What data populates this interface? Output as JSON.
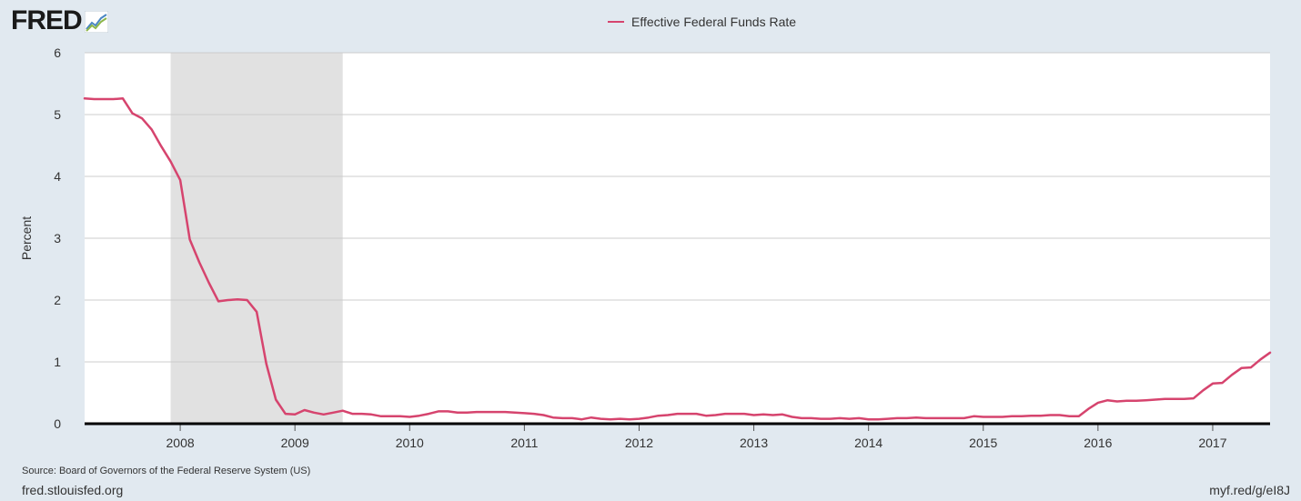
{
  "logo": {
    "text": "FRED",
    "icon": "trend-chart-icon"
  },
  "chart_data": {
    "type": "line",
    "title": "",
    "ylabel": "Percent",
    "xlabel": "",
    "ylim": [
      0,
      6
    ],
    "xlim": [
      "2007-03-01",
      "2017-07-01"
    ],
    "y_ticks": [
      0,
      1,
      2,
      3,
      4,
      5,
      6
    ],
    "x_ticks": [
      "2008",
      "2009",
      "2010",
      "2011",
      "2012",
      "2013",
      "2014",
      "2015",
      "2016",
      "2017"
    ],
    "grid": true,
    "legend_position": "top-center",
    "recession_shading": [
      [
        "2007-12-01",
        "2009-06-01"
      ]
    ],
    "colors": {
      "line": "#d6446e",
      "recession": "#e1e1e1",
      "background": "#e1e9f0",
      "grid": "#cccccc"
    },
    "series": [
      {
        "name": "Effective Federal Funds Rate",
        "points": [
          [
            "2007-03-01",
            5.26
          ],
          [
            "2007-04-01",
            5.25
          ],
          [
            "2007-05-01",
            5.25
          ],
          [
            "2007-06-01",
            5.25
          ],
          [
            "2007-07-01",
            5.26
          ],
          [
            "2007-08-01",
            5.02
          ],
          [
            "2007-09-01",
            4.94
          ],
          [
            "2007-10-01",
            4.76
          ],
          [
            "2007-11-01",
            4.49
          ],
          [
            "2007-12-01",
            4.24
          ],
          [
            "2008-01-01",
            3.94
          ],
          [
            "2008-02-01",
            2.98
          ],
          [
            "2008-03-01",
            2.61
          ],
          [
            "2008-04-01",
            2.28
          ],
          [
            "2008-05-01",
            1.98
          ],
          [
            "2008-06-01",
            2.0
          ],
          [
            "2008-07-01",
            2.01
          ],
          [
            "2008-08-01",
            2.0
          ],
          [
            "2008-09-01",
            1.81
          ],
          [
            "2008-10-01",
            0.97
          ],
          [
            "2008-11-01",
            0.39
          ],
          [
            "2008-12-01",
            0.16
          ],
          [
            "2009-01-01",
            0.15
          ],
          [
            "2009-02-01",
            0.22
          ],
          [
            "2009-03-01",
            0.18
          ],
          [
            "2009-04-01",
            0.15
          ],
          [
            "2009-05-01",
            0.18
          ],
          [
            "2009-06-01",
            0.21
          ],
          [
            "2009-07-01",
            0.16
          ],
          [
            "2009-08-01",
            0.16
          ],
          [
            "2009-09-01",
            0.15
          ],
          [
            "2009-10-01",
            0.12
          ],
          [
            "2009-11-01",
            0.12
          ],
          [
            "2009-12-01",
            0.12
          ],
          [
            "2010-01-01",
            0.11
          ],
          [
            "2010-02-01",
            0.13
          ],
          [
            "2010-03-01",
            0.16
          ],
          [
            "2010-04-01",
            0.2
          ],
          [
            "2010-05-01",
            0.2
          ],
          [
            "2010-06-01",
            0.18
          ],
          [
            "2010-07-01",
            0.18
          ],
          [
            "2010-08-01",
            0.19
          ],
          [
            "2010-09-01",
            0.19
          ],
          [
            "2010-10-01",
            0.19
          ],
          [
            "2010-11-01",
            0.19
          ],
          [
            "2010-12-01",
            0.18
          ],
          [
            "2011-01-01",
            0.17
          ],
          [
            "2011-02-01",
            0.16
          ],
          [
            "2011-03-01",
            0.14
          ],
          [
            "2011-04-01",
            0.1
          ],
          [
            "2011-05-01",
            0.09
          ],
          [
            "2011-06-01",
            0.09
          ],
          [
            "2011-07-01",
            0.07
          ],
          [
            "2011-08-01",
            0.1
          ],
          [
            "2011-09-01",
            0.08
          ],
          [
            "2011-10-01",
            0.07
          ],
          [
            "2011-11-01",
            0.08
          ],
          [
            "2011-12-01",
            0.07
          ],
          [
            "2012-01-01",
            0.08
          ],
          [
            "2012-02-01",
            0.1
          ],
          [
            "2012-03-01",
            0.13
          ],
          [
            "2012-04-01",
            0.14
          ],
          [
            "2012-05-01",
            0.16
          ],
          [
            "2012-06-01",
            0.16
          ],
          [
            "2012-07-01",
            0.16
          ],
          [
            "2012-08-01",
            0.13
          ],
          [
            "2012-09-01",
            0.14
          ],
          [
            "2012-10-01",
            0.16
          ],
          [
            "2012-11-01",
            0.16
          ],
          [
            "2012-12-01",
            0.16
          ],
          [
            "2013-01-01",
            0.14
          ],
          [
            "2013-02-01",
            0.15
          ],
          [
            "2013-03-01",
            0.14
          ],
          [
            "2013-04-01",
            0.15
          ],
          [
            "2013-05-01",
            0.11
          ],
          [
            "2013-06-01",
            0.09
          ],
          [
            "2013-07-01",
            0.09
          ],
          [
            "2013-08-01",
            0.08
          ],
          [
            "2013-09-01",
            0.08
          ],
          [
            "2013-10-01",
            0.09
          ],
          [
            "2013-11-01",
            0.08
          ],
          [
            "2013-12-01",
            0.09
          ],
          [
            "2014-01-01",
            0.07
          ],
          [
            "2014-02-01",
            0.07
          ],
          [
            "2014-03-01",
            0.08
          ],
          [
            "2014-04-01",
            0.09
          ],
          [
            "2014-05-01",
            0.09
          ],
          [
            "2014-06-01",
            0.1
          ],
          [
            "2014-07-01",
            0.09
          ],
          [
            "2014-08-01",
            0.09
          ],
          [
            "2014-09-01",
            0.09
          ],
          [
            "2014-10-01",
            0.09
          ],
          [
            "2014-11-01",
            0.09
          ],
          [
            "2014-12-01",
            0.12
          ],
          [
            "2015-01-01",
            0.11
          ],
          [
            "2015-02-01",
            0.11
          ],
          [
            "2015-03-01",
            0.11
          ],
          [
            "2015-04-01",
            0.12
          ],
          [
            "2015-05-01",
            0.12
          ],
          [
            "2015-06-01",
            0.13
          ],
          [
            "2015-07-01",
            0.13
          ],
          [
            "2015-08-01",
            0.14
          ],
          [
            "2015-09-01",
            0.14
          ],
          [
            "2015-10-01",
            0.12
          ],
          [
            "2015-11-01",
            0.12
          ],
          [
            "2015-12-01",
            0.24
          ],
          [
            "2016-01-01",
            0.34
          ],
          [
            "2016-02-01",
            0.38
          ],
          [
            "2016-03-01",
            0.36
          ],
          [
            "2016-04-01",
            0.37
          ],
          [
            "2016-05-01",
            0.37
          ],
          [
            "2016-06-01",
            0.38
          ],
          [
            "2016-07-01",
            0.39
          ],
          [
            "2016-08-01",
            0.4
          ],
          [
            "2016-09-01",
            0.4
          ],
          [
            "2016-10-01",
            0.4
          ],
          [
            "2016-11-01",
            0.41
          ],
          [
            "2016-12-01",
            0.54
          ],
          [
            "2017-01-01",
            0.65
          ],
          [
            "2017-02-01",
            0.66
          ],
          [
            "2017-03-01",
            0.79
          ],
          [
            "2017-04-01",
            0.9
          ],
          [
            "2017-05-01",
            0.91
          ],
          [
            "2017-06-01",
            1.04
          ],
          [
            "2017-07-01",
            1.15
          ]
        ]
      }
    ]
  },
  "footer": {
    "source": "Source: Board of Governors of the Federal Reserve System (US)",
    "site": "fred.stlouisfed.org",
    "short_url": "myf.red/g/eI8J"
  }
}
